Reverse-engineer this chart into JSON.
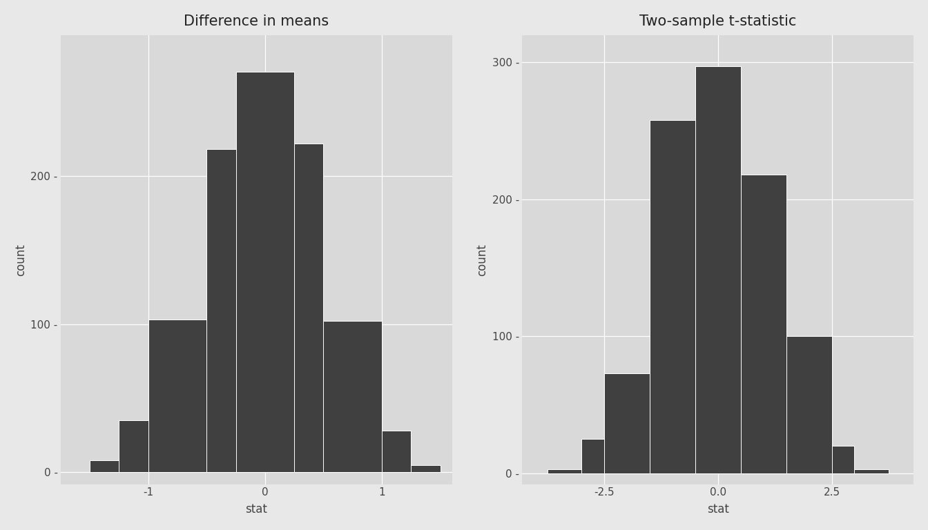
{
  "left": {
    "title": "Difference in means",
    "xlabel": "stat",
    "ylabel": "count",
    "bar_counts": [
      8,
      35,
      103,
      218,
      270,
      222,
      102,
      28,
      5
    ],
    "bin_edges": [
      -1.5,
      -1.25,
      -1.0,
      -0.5,
      -0.25,
      0.25,
      0.5,
      1.0,
      1.25,
      1.5
    ],
    "xlim": [
      -1.75,
      1.6
    ],
    "ylim": [
      -8,
      295
    ],
    "xticks": [
      -1,
      0,
      1
    ],
    "xtick_labels": [
      "-1",
      "0",
      "1"
    ],
    "yticks": [
      0,
      100,
      200
    ],
    "ytick_labels": [
      "0",
      "100",
      "200"
    ]
  },
  "right": {
    "title": "Two-sample t-statistic",
    "xlabel": "stat",
    "ylabel": "count",
    "bar_counts": [
      3,
      25,
      73,
      258,
      297,
      218,
      100,
      20,
      3
    ],
    "bin_edges": [
      -3.75,
      -3.0,
      -2.5,
      -1.5,
      -0.5,
      0.5,
      1.5,
      2.5,
      3.0,
      3.75
    ],
    "xlim": [
      -4.3,
      4.3
    ],
    "ylim": [
      -8,
      320
    ],
    "xticks": [
      -2.5,
      0.0,
      2.5
    ],
    "xtick_labels": [
      "-2.5",
      "0.0",
      "2.5"
    ],
    "yticks": [
      0,
      100,
      200,
      300
    ],
    "ytick_labels": [
      "0",
      "100",
      "200",
      "300"
    ]
  },
  "bar_color": "#404040",
  "bar_edge_color": "white",
  "bar_linewidth": 0.7,
  "outer_bg_color": "#e8e8e8",
  "panel_bg_color": "#d9d9d9",
  "grid_color": "#ffffff",
  "grid_linewidth": 0.9,
  "title_fontsize": 15,
  "axis_label_fontsize": 12,
  "tick_fontsize": 11,
  "tick_color": "#444444"
}
